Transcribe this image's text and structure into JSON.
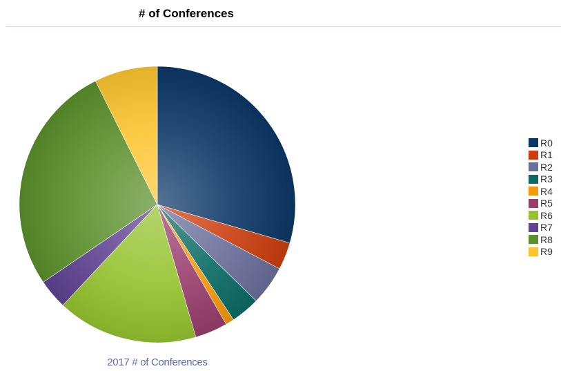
{
  "chart_data": {
    "type": "pie",
    "title": "# of Conferences",
    "caption": "2017 # of Conferences",
    "legend_position": "right",
    "categories": [
      "R0",
      "R1",
      "R2",
      "R3",
      "R4",
      "R5",
      "R6",
      "R7",
      "R8",
      "R9"
    ],
    "values": [
      29.5,
      3.2,
      4.6,
      3.4,
      1.0,
      3.8,
      16.5,
      3.5,
      27.1,
      7.4
    ],
    "colors": [
      "#0b3766",
      "#cc3e0f",
      "#6a6f9b",
      "#0b6b64",
      "#f5990a",
      "#993e6c",
      "#95c32f",
      "#5f4291",
      "#5b8f2b",
      "#fcc52f"
    ]
  }
}
